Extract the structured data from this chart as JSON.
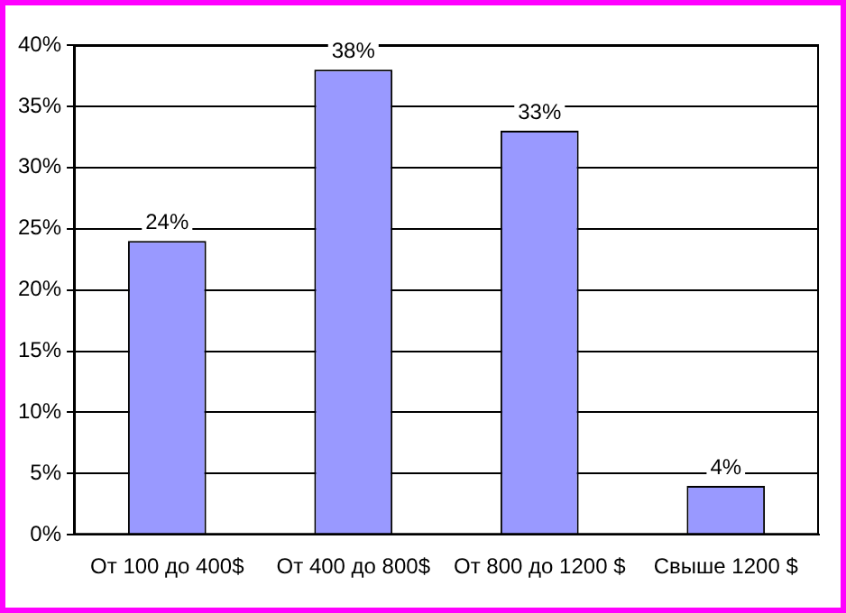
{
  "chart_data": {
    "type": "bar",
    "categories": [
      "От 100 до 400$",
      "От 400 до 800$",
      "От 800 до 1200 $",
      "Свыше 1200 $"
    ],
    "values": [
      24,
      38,
      33,
      4
    ],
    "value_labels": [
      "24%",
      "38%",
      "33%",
      "4%"
    ],
    "color": "#9999ff",
    "ylim": [
      0,
      40
    ],
    "yticks": [
      {
        "value": 0,
        "label": "0%"
      },
      {
        "value": 5,
        "label": "5%"
      },
      {
        "value": 10,
        "label": "10%"
      },
      {
        "value": 15,
        "label": "15%"
      },
      {
        "value": 20,
        "label": "20%"
      },
      {
        "value": 25,
        "label": "25%"
      },
      {
        "value": 30,
        "label": "30%"
      },
      {
        "value": 35,
        "label": "35%"
      },
      {
        "value": 40,
        "label": "40%"
      }
    ],
    "grid": "y",
    "legend": false
  }
}
